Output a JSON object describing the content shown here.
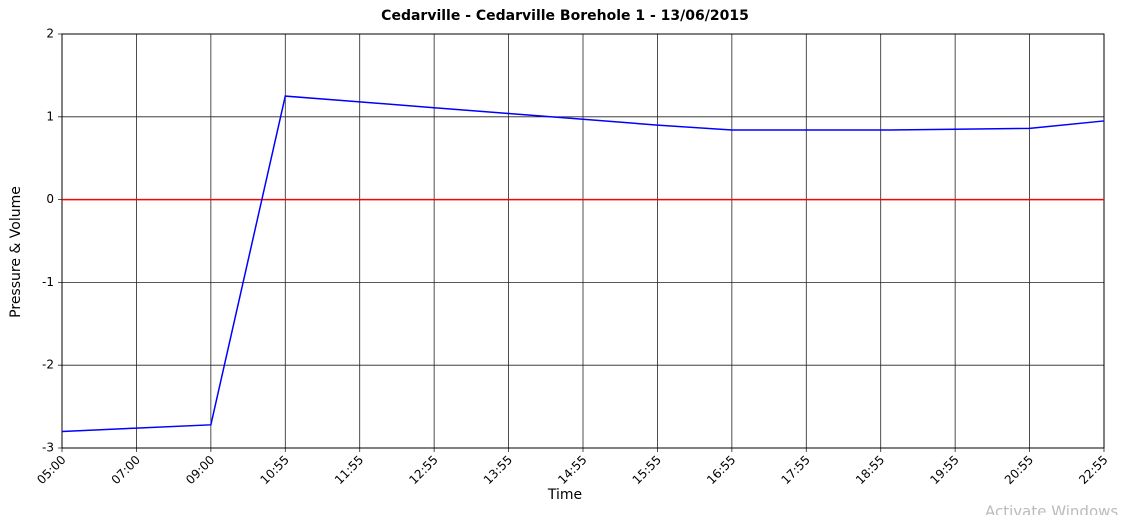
{
  "chart_data": {
    "type": "line",
    "title": "Cedarville - Cedarville Borehole 1 - 13/06/2015",
    "x_label": "Time",
    "y_label": "Pressure & Volume",
    "categories": [
      "05:00",
      "07:00",
      "09:00",
      "10:55",
      "11:55",
      "12:55",
      "13:55",
      "14:55",
      "15:55",
      "16:55",
      "17:55",
      "18:55",
      "19:55",
      "20:55",
      "22:55"
    ],
    "series": [
      {
        "color": "#0000ff",
        "values": [
          -2.8,
          -2.76,
          -2.72,
          1.25,
          1.18,
          1.11,
          1.04,
          0.97,
          0.9,
          0.84,
          0.84,
          0.84,
          0.85,
          0.86,
          0.95
        ]
      },
      {
        "color": "#ff0000",
        "values": [
          0,
          0,
          0,
          0,
          0,
          0,
          0,
          0,
          0,
          0,
          0,
          0,
          0,
          0,
          0
        ]
      }
    ],
    "ylim": [
      -3,
      2
    ],
    "yticks": [
      -3,
      -2,
      -1,
      0,
      1,
      2
    ],
    "grid": true,
    "watermark": "Activate Windows"
  }
}
